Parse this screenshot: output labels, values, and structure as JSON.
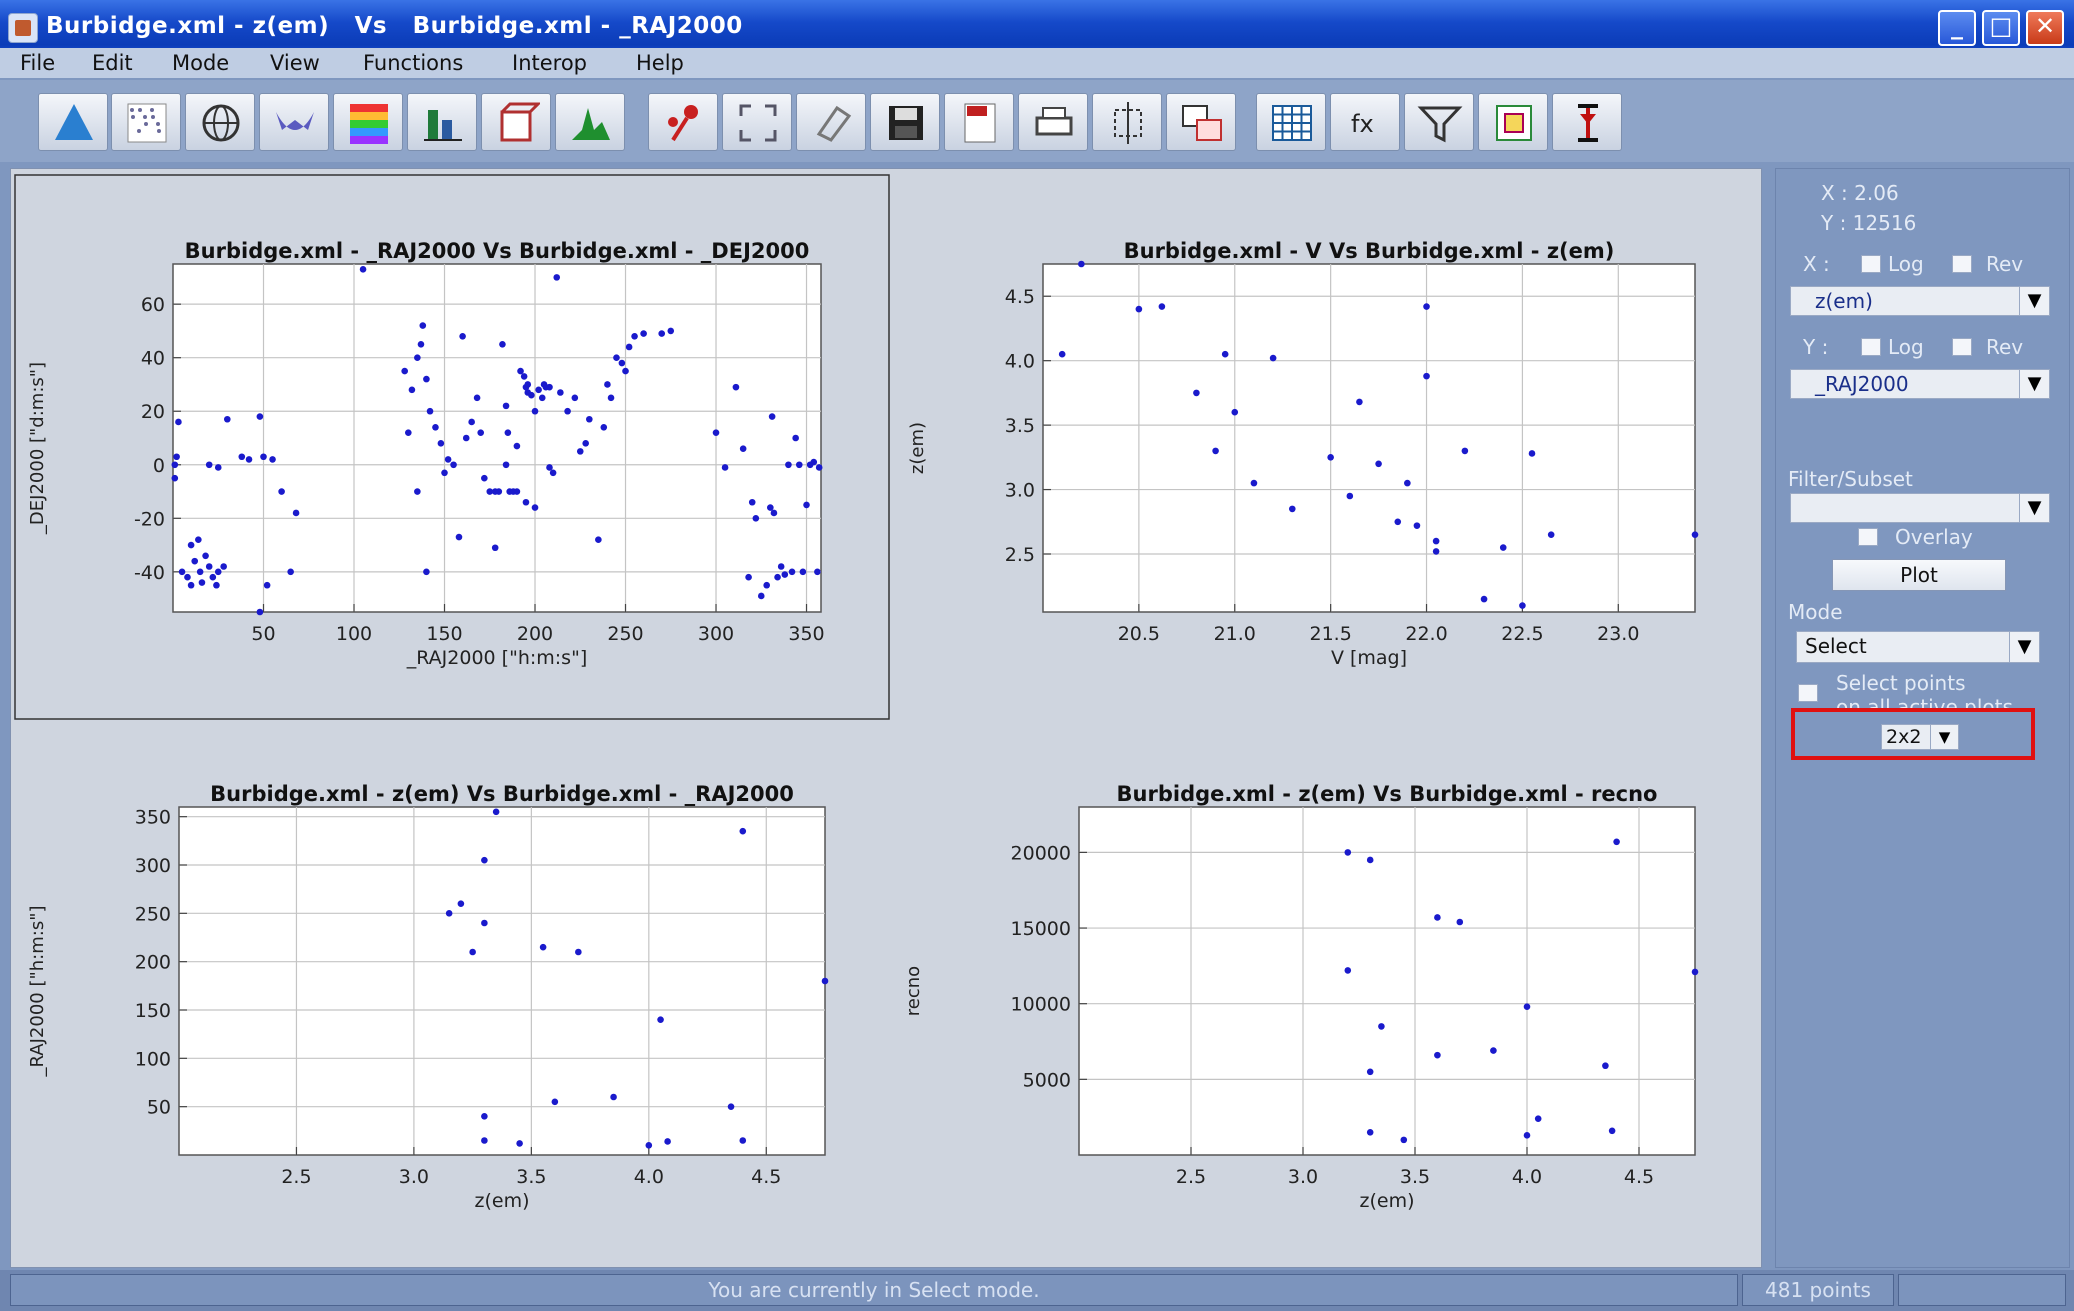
{
  "window": {
    "title": "Burbidge.xml - z(em)   Vs   Burbidge.xml - _RAJ2000",
    "buttons": {
      "minimize": "_",
      "maximize": "□",
      "close": "✕"
    }
  },
  "menu": [
    "File",
    "Edit",
    "Mode",
    "View",
    "Functions",
    "Interop",
    "Help"
  ],
  "toolbar": {
    "icons": [
      "cone-plot-icon",
      "scatter-plot-icon",
      "sky-globe-icon",
      "3d-surface-icon",
      "density-map-icon",
      "histogram-icon",
      "cube-plot-icon",
      "stacked-peaks-icon",
      "add-point-icon",
      "zoom-fit-icon",
      "eraser-icon",
      "save-icon",
      "pdf-export-icon",
      "print-icon",
      "crop-region-icon",
      "copy-window-icon",
      "table-view-icon",
      "function-icon",
      "filter-icon",
      "settings-icon",
      "error-bar-icon"
    ]
  },
  "side_panel": {
    "cursor_x": "X : 2.06",
    "cursor_y": "Y : 12516",
    "x_axis": {
      "label": "X :",
      "log": "Log",
      "rev": "Rev",
      "column": "z(em)"
    },
    "y_axis": {
      "label": "Y :",
      "log": "Log",
      "rev": "Rev",
      "column": "_RAJ2000"
    },
    "filter_label": "Filter/Subset",
    "filter_value": "",
    "overlay": "Overlay",
    "plot_button": "Plot",
    "mode_label": "Mode",
    "mode_value": "Select",
    "select_points_line1": "Select points",
    "select_points_line2": "on all active plots",
    "grid_layout": "2x2"
  },
  "status": {
    "message": "You are currently in Select mode.",
    "points": "481 points"
  },
  "colors": {
    "points": "#1a1acc",
    "highlight": "#e01010"
  },
  "charts": [
    {
      "title": "Burbidge.xml - _RAJ2000   Vs   Burbidge.xml - _DEJ2000",
      "xlabel": "_RAJ2000 [\"h:m:s\"]",
      "ylabel": "_DEJ2000 [\"d:m:s\"]",
      "xticks": [
        "50",
        "100",
        "150",
        "200",
        "250",
        "300",
        "350"
      ],
      "yticks": [
        "60",
        "40",
        "20",
        "0",
        "-20",
        "-40"
      ]
    },
    {
      "title": "Burbidge.xml - V   Vs   Burbidge.xml - z(em)",
      "xlabel": "V [mag]",
      "ylabel": "z(em)",
      "xticks": [
        "20.5",
        "21.0",
        "21.5",
        "22.0",
        "22.5",
        "23.0"
      ],
      "yticks": [
        "4.5",
        "4.0",
        "3.5",
        "3.0",
        "2.5"
      ]
    },
    {
      "title": "Burbidge.xml - z(em)   Vs   Burbidge.xml - _RAJ2000",
      "xlabel": "z(em)",
      "ylabel": "_RAJ2000 [\"h:m:s\"]",
      "xticks": [
        "2.5",
        "3.0",
        "3.5",
        "4.0",
        "4.5"
      ],
      "yticks": [
        "350",
        "300",
        "250",
        "200",
        "150",
        "100",
        "50"
      ]
    },
    {
      "title": "Burbidge.xml - z(em)   Vs   Burbidge.xml - recno",
      "xlabel": "z(em)",
      "ylabel": "recno",
      "xticks": [
        "2.5",
        "3.0",
        "3.5",
        "4.0",
        "4.5"
      ],
      "yticks": [
        "20000",
        "15000",
        "10000",
        "5000"
      ]
    }
  ],
  "chart_data": [
    {
      "type": "scatter",
      "title": "Burbidge.xml - _RAJ2000   Vs   Burbidge.xml - _DEJ2000",
      "xlabel": "_RAJ2000 [\"h:m:s\"]",
      "ylabel": "_DEJ2000 [\"d:m:s\"]",
      "xlim": [
        0,
        358
      ],
      "ylim": [
        -55,
        75
      ],
      "grid": true,
      "points": [
        [
          1,
          -5
        ],
        [
          1,
          0
        ],
        [
          3,
          16
        ],
        [
          2,
          3
        ],
        [
          5,
          -40
        ],
        [
          8,
          -42
        ],
        [
          10,
          -45
        ],
        [
          10,
          -30
        ],
        [
          12,
          -36
        ],
        [
          14,
          -28
        ],
        [
          15,
          -40
        ],
        [
          16,
          -44
        ],
        [
          18,
          -34
        ],
        [
          20,
          -38
        ],
        [
          22,
          -42
        ],
        [
          24,
          -45
        ],
        [
          25,
          -40
        ],
        [
          28,
          -38
        ],
        [
          20,
          0
        ],
        [
          25,
          -1
        ],
        [
          30,
          17
        ],
        [
          38,
          3
        ],
        [
          42,
          2
        ],
        [
          48,
          18
        ],
        [
          50,
          3
        ],
        [
          55,
          2
        ],
        [
          48,
          -55
        ],
        [
          52,
          -45
        ],
        [
          60,
          -10
        ],
        [
          68,
          -18
        ],
        [
          65,
          -40
        ],
        [
          128,
          35
        ],
        [
          132,
          28
        ],
        [
          135,
          40
        ],
        [
          137,
          45
        ],
        [
          138,
          52
        ],
        [
          130,
          12
        ],
        [
          140,
          32
        ],
        [
          142,
          20
        ],
        [
          145,
          14
        ],
        [
          148,
          8
        ],
        [
          150,
          -3
        ],
        [
          152,
          2
        ],
        [
          155,
          0
        ],
        [
          160,
          48
        ],
        [
          158,
          -27
        ],
        [
          162,
          10
        ],
        [
          165,
          16
        ],
        [
          168,
          25
        ],
        [
          170,
          12
        ],
        [
          172,
          -5
        ],
        [
          175,
          -10
        ],
        [
          178,
          -10
        ],
        [
          180,
          -10
        ],
        [
          182,
          45
        ],
        [
          184,
          22
        ],
        [
          186,
          -10
        ],
        [
          188,
          -10
        ],
        [
          190,
          -10
        ],
        [
          192,
          35
        ],
        [
          194,
          33
        ],
        [
          196,
          27
        ],
        [
          198,
          26
        ],
        [
          200,
          20
        ],
        [
          202,
          28
        ],
        [
          204,
          25
        ],
        [
          206,
          29
        ],
        [
          208,
          -1
        ],
        [
          210,
          -3
        ],
        [
          212,
          70
        ],
        [
          214,
          27
        ],
        [
          218,
          20
        ],
        [
          222,
          25
        ],
        [
          225,
          5
        ],
        [
          228,
          8
        ],
        [
          230,
          17
        ],
        [
          235,
          -28
        ],
        [
          238,
          14
        ],
        [
          240,
          30
        ],
        [
          242,
          25
        ],
        [
          245,
          40
        ],
        [
          248,
          38
        ],
        [
          250,
          35
        ],
        [
          252,
          44
        ],
        [
          255,
          48
        ],
        [
          260,
          49
        ],
        [
          270,
          49
        ],
        [
          275,
          50
        ],
        [
          178,
          -31
        ],
        [
          185,
          12
        ],
        [
          190,
          7
        ],
        [
          195,
          -14
        ],
        [
          200,
          -16
        ],
        [
          195,
          29
        ],
        [
          196,
          30
        ],
        [
          205,
          30
        ],
        [
          208,
          29
        ],
        [
          300,
          12
        ],
        [
          305,
          -1
        ],
        [
          315,
          6
        ],
        [
          318,
          -42
        ],
        [
          320,
          -14
        ],
        [
          322,
          -20
        ],
        [
          325,
          -49
        ],
        [
          328,
          -45
        ],
        [
          330,
          -16
        ],
        [
          332,
          -18
        ],
        [
          334,
          -42
        ],
        [
          336,
          -38
        ],
        [
          338,
          -41
        ],
        [
          340,
          0
        ],
        [
          342,
          -40
        ],
        [
          344,
          10
        ],
        [
          346,
          0
        ],
        [
          348,
          -40
        ],
        [
          350,
          -15
        ],
        [
          352,
          0
        ],
        [
          354,
          1
        ],
        [
          356,
          -40
        ],
        [
          357,
          -1
        ],
        [
          311,
          29
        ],
        [
          331,
          18
        ],
        [
          135,
          -10
        ],
        [
          140,
          -40
        ],
        [
          184,
          0
        ],
        [
          105,
          73
        ]
      ]
    },
    {
      "type": "scatter",
      "title": "Burbidge.xml - V   Vs   Burbidge.xml - z(em)",
      "xlabel": "V [mag]",
      "ylabel": "z(em)",
      "xlim": [
        20.0,
        23.4
      ],
      "ylim": [
        2.05,
        4.75
      ],
      "grid": true,
      "points": [
        [
          20.2,
          4.75
        ],
        [
          20.1,
          4.05
        ],
        [
          20.5,
          4.4
        ],
        [
          20.62,
          4.42
        ],
        [
          20.95,
          4.05
        ],
        [
          21.2,
          4.02
        ],
        [
          20.8,
          3.75
        ],
        [
          21.0,
          3.6
        ],
        [
          21.65,
          3.68
        ],
        [
          22.0,
          4.42
        ],
        [
          22.0,
          3.88
        ],
        [
          22.2,
          3.3
        ],
        [
          21.5,
          3.25
        ],
        [
          21.75,
          3.2
        ],
        [
          21.9,
          3.05
        ],
        [
          22.05,
          2.6
        ],
        [
          22.4,
          2.55
        ],
        [
          22.65,
          2.65
        ],
        [
          22.55,
          3.28
        ],
        [
          22.5,
          2.1
        ],
        [
          23.4,
          2.65
        ],
        [
          22.3,
          2.15
        ],
        [
          21.85,
          2.75
        ],
        [
          21.95,
          2.72
        ],
        [
          22.05,
          2.52
        ],
        [
          21.6,
          2.95
        ],
        [
          21.3,
          2.85
        ],
        [
          20.9,
          3.3
        ],
        [
          21.1,
          3.05
        ]
      ]
    },
    {
      "type": "scatter",
      "title": "Burbidge.xml - z(em)   Vs   Burbidge.xml - _RAJ2000",
      "xlabel": "z(em)",
      "ylabel": "_RAJ2000 [\"h:m:s\"]",
      "xlim": [
        2.0,
        4.75
      ],
      "ylim": [
        0,
        360
      ],
      "grid": true,
      "points": [
        [
          4.4,
          335
        ],
        [
          4.75,
          180
        ],
        [
          4.05,
          140
        ],
        [
          3.85,
          60
        ],
        [
          3.6,
          55
        ],
        [
          4.35,
          50
        ],
        [
          4.4,
          15
        ],
        [
          4.0,
          10
        ],
        [
          4.08,
          14
        ],
        [
          3.3,
          15
        ],
        [
          3.45,
          12
        ],
        [
          3.3,
          40
        ],
        [
          3.25,
          210
        ],
        [
          3.3,
          240
        ],
        [
          3.3,
          305
        ],
        [
          3.35,
          355
        ],
        [
          3.55,
          215
        ],
        [
          3.7,
          210
        ],
        [
          3.15,
          250
        ],
        [
          3.2,
          260
        ]
      ]
    },
    {
      "type": "scatter",
      "title": "Burbidge.xml - z(em)   Vs   Burbidge.xml - recno",
      "xlabel": "z(em)",
      "ylabel": "recno",
      "xlim": [
        2.0,
        4.75
      ],
      "ylim": [
        0,
        23000
      ],
      "grid": true,
      "points": [
        [
          4.4,
          20700
        ],
        [
          4.75,
          12100
        ],
        [
          4.0,
          9800
        ],
        [
          4.05,
          2400
        ],
        [
          3.6,
          15700
        ],
        [
          3.7,
          15400
        ],
        [
          3.85,
          6900
        ],
        [
          3.6,
          6600
        ],
        [
          4.35,
          5900
        ],
        [
          4.38,
          1600
        ],
        [
          4.0,
          1300
        ],
        [
          3.3,
          5500
        ],
        [
          3.45,
          1000
        ],
        [
          3.3,
          1500
        ],
        [
          3.35,
          8500
        ],
        [
          3.2,
          12200
        ],
        [
          3.3,
          19500
        ],
        [
          3.2,
          20000
        ]
      ]
    }
  ]
}
